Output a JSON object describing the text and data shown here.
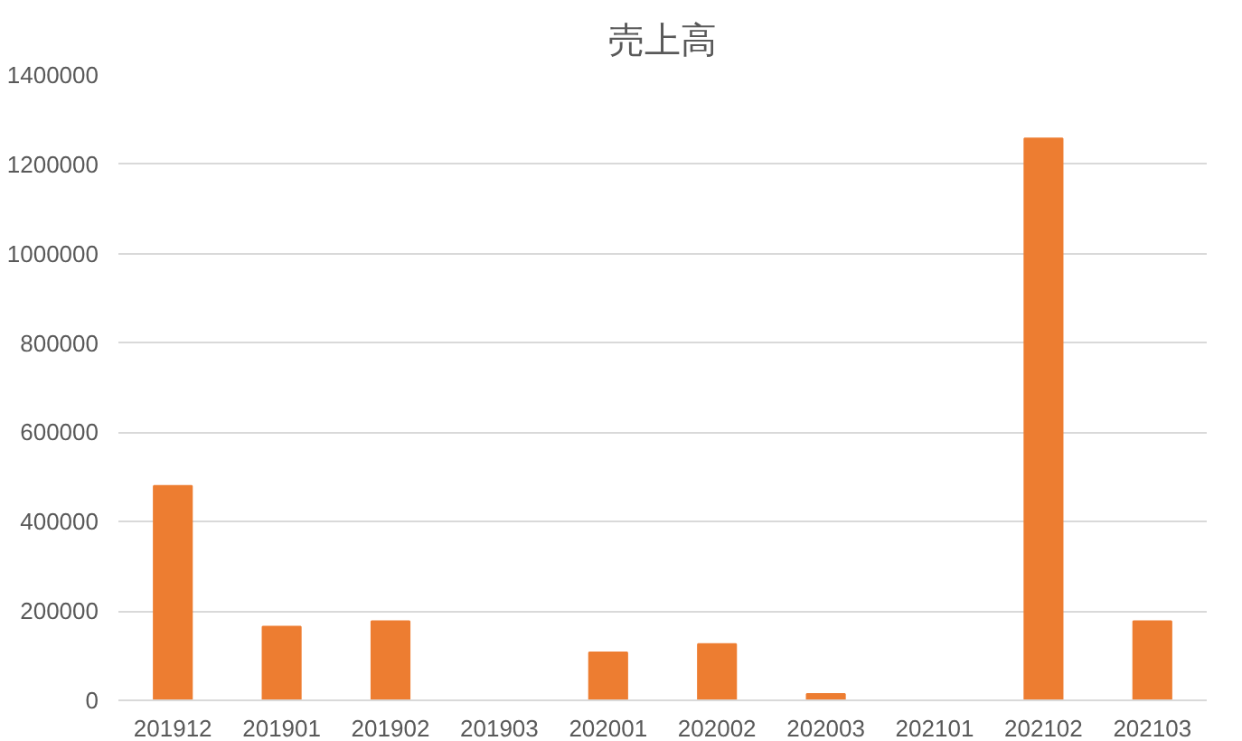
{
  "chart_data": {
    "type": "bar",
    "title": "売上高",
    "categories": [
      "201912",
      "201901",
      "201902",
      "201903",
      "202001",
      "202002",
      "202003",
      "202101",
      "202102",
      "202103"
    ],
    "values": [
      480000,
      165000,
      177000,
      0,
      107000,
      126000,
      14000,
      0,
      1258000,
      177000
    ],
    "color": "#ed7d31",
    "ylim": [
      0,
      1400000
    ],
    "yticks": [
      0,
      200000,
      400000,
      600000,
      800000,
      1000000,
      1200000,
      1400000
    ],
    "grid": "y"
  }
}
